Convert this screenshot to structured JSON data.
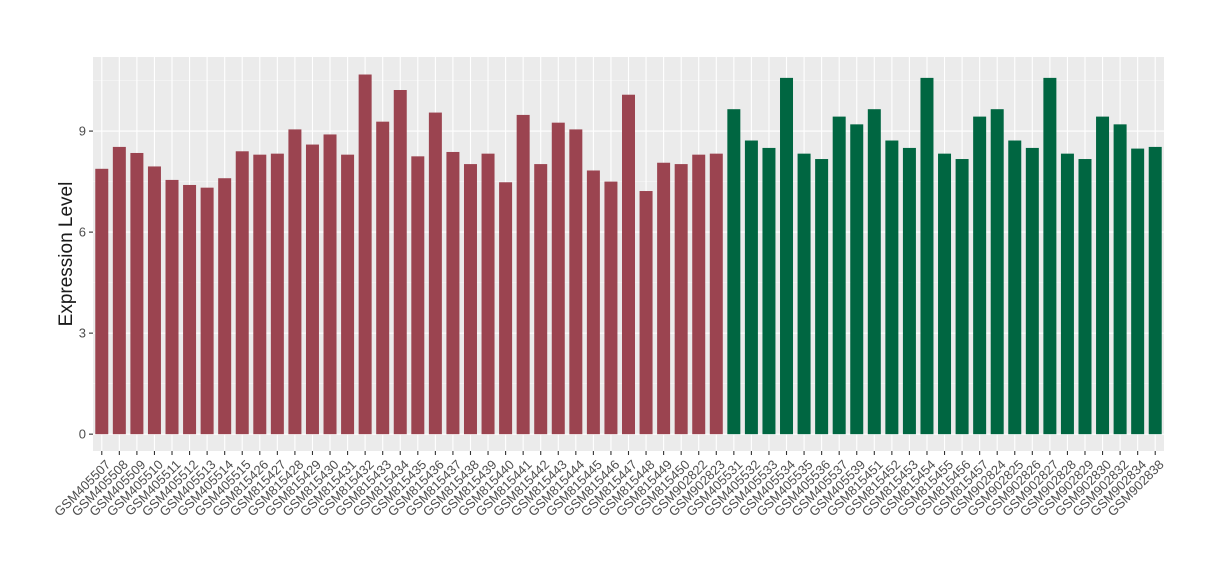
{
  "chart_data": {
    "type": "bar",
    "title": "",
    "xlabel": "",
    "ylabel": "Expression Level",
    "ylim": [
      -0.5,
      11.2
    ],
    "yticks": [
      0,
      3,
      6,
      9
    ],
    "grid": true,
    "colors": {
      "panel": "#ebebeb",
      "grid_major": "#ffffff",
      "group_a": "#9b4450",
      "group_b": "#006641"
    },
    "categories": [
      "GSM405507",
      "GSM405508",
      "GSM405509",
      "GSM405510",
      "GSM405511",
      "GSM405512",
      "GSM405513",
      "GSM405514",
      "GSM405515",
      "GSM815426",
      "GSM815427",
      "GSM815428",
      "GSM815429",
      "GSM815430",
      "GSM815431",
      "GSM815432",
      "GSM815433",
      "GSM815434",
      "GSM815435",
      "GSM815436",
      "GSM815437",
      "GSM815438",
      "GSM815439",
      "GSM815440",
      "GSM815441",
      "GSM815442",
      "GSM815443",
      "GSM815444",
      "GSM815445",
      "GSM815446",
      "GSM815447",
      "GSM815448",
      "GSM815449",
      "GSM815450",
      "GSM902822",
      "GSM902823",
      "GSM405531",
      "GSM405532",
      "GSM405533",
      "GSM405534",
      "GSM405535",
      "GSM405536",
      "GSM405537",
      "GSM405539",
      "GSM815451",
      "GSM815452",
      "GSM815453",
      "GSM815454",
      "GSM815455",
      "GSM815456",
      "GSM815457",
      "GSM902824",
      "GSM902825",
      "GSM902826",
      "GSM902827",
      "GSM902828",
      "GSM902829",
      "GSM902830",
      "GSM902832",
      "GSM902834",
      "GSM902838"
    ],
    "values": [
      7.88,
      8.53,
      8.35,
      7.95,
      7.55,
      7.4,
      7.32,
      7.6,
      8.4,
      8.3,
      8.33,
      9.05,
      8.6,
      8.9,
      8.3,
      10.68,
      9.28,
      10.22,
      8.25,
      9.55,
      8.38,
      8.02,
      8.33,
      7.48,
      9.48,
      8.02,
      9.25,
      9.05,
      7.83,
      7.5,
      10.08,
      7.22,
      8.06,
      8.02,
      8.3,
      8.33,
      9.65,
      8.72,
      8.5,
      10.58,
      8.33,
      8.17,
      9.43,
      9.2,
      9.65,
      8.72,
      8.5,
      10.58,
      8.33,
      8.17,
      9.43,
      9.65,
      8.72,
      8.5,
      10.58,
      8.33,
      8.17,
      9.43,
      9.2,
      8.48,
      8.53
    ],
    "group_split_index": 36
  }
}
